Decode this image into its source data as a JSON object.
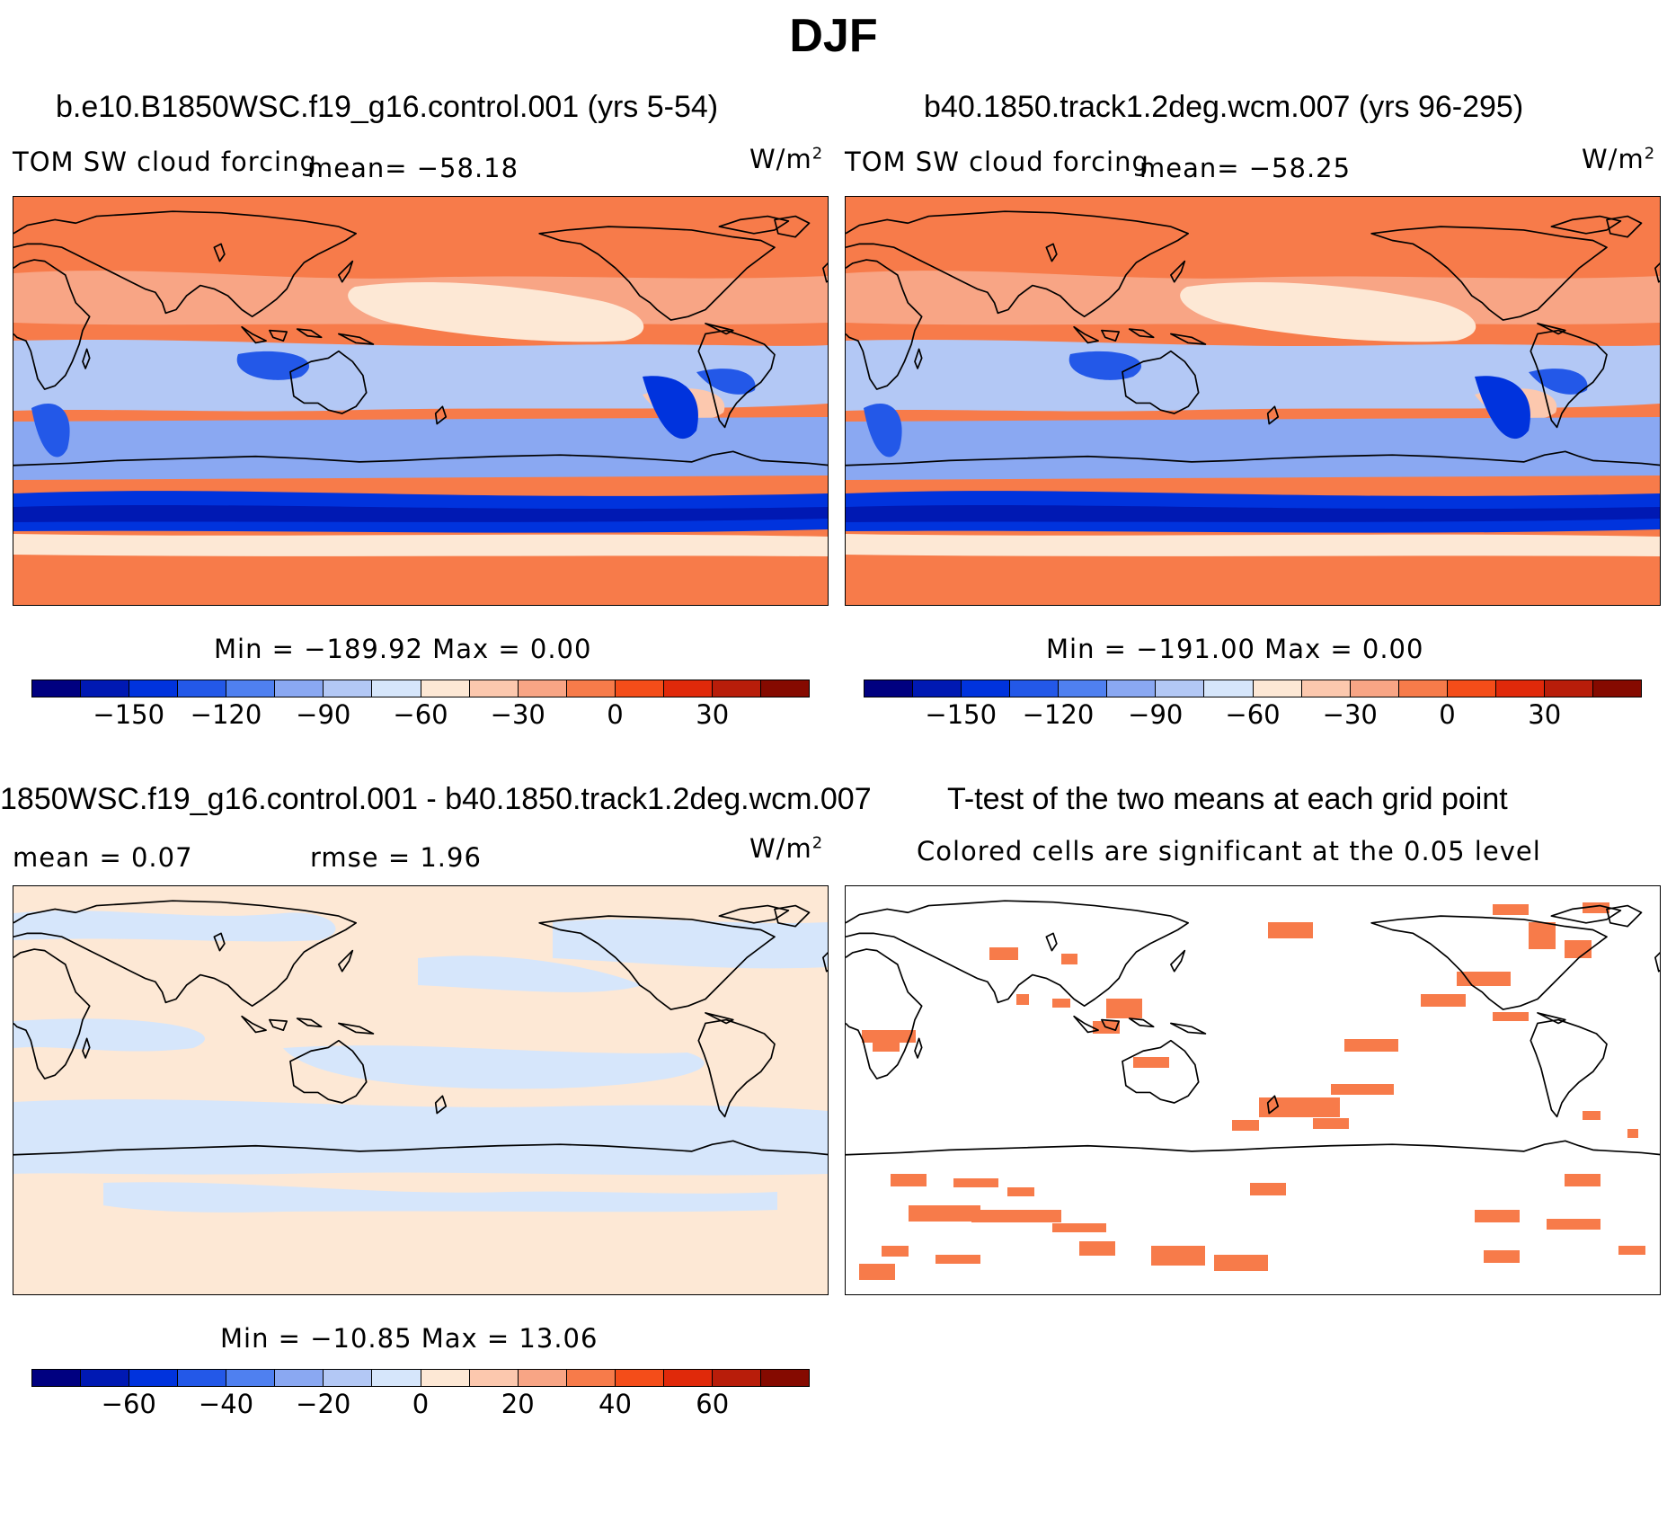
{
  "figure_title": "DJF",
  "colors": {
    "palette": [
      "#000080",
      "#0019b3",
      "#0033dd",
      "#2358e8",
      "#4f80f0",
      "#8aa8f2",
      "#b3c8f5",
      "#d6e6fb",
      "#fde8d5",
      "#fcc8ae",
      "#f8a585",
      "#f77b4a",
      "#f44d19",
      "#e0290a",
      "#b81d0a",
      "#850a00"
    ],
    "significance": "#f77b4a"
  },
  "panels": {
    "top_left": {
      "title": "b.e10.B1850WSC.f19_g16.control.001 (yrs 5-54)",
      "variable": "TOM SW cloud forcing",
      "mean_text": "mean= −58.18",
      "units": "W/m",
      "units_exp": "2",
      "minmax": "Min = −189.92 Max =    0.00"
    },
    "top_right": {
      "title": "b40.1850.track1.2deg.wcm.007 (yrs 96-295)",
      "variable": "TOM SW cloud forcing",
      "mean_text": "mean= −58.25",
      "units": "W/m",
      "units_exp": "2",
      "minmax": "Min = −191.00 Max =    0.00"
    },
    "bottom_left": {
      "title": "1850WSC.f19_g16.control.001 - b40.1850.track1.2deg.wcm.007",
      "mean_text": "mean =    0.07",
      "rmse_text": "rmse =    1.96",
      "units": "W/m",
      "units_exp": "2",
      "minmax": "Min = −10.85 Max =  13.06"
    },
    "bottom_right": {
      "title": "T-test of the two means at each grid point",
      "subtitle": "Colored cells are significant at the 0.05 level"
    }
  },
  "chart_data": [
    {
      "type": "heatmap",
      "title": "b.e10.B1850WSC.f19_g16.control.001 (yrs 5-54)",
      "variable": "TOM SW cloud forcing",
      "units": "W/m2",
      "mean": -58.18,
      "min": -189.92,
      "max": 0.0,
      "colorbar_levels": [
        -165,
        -150,
        -135,
        -120,
        -105,
        -90,
        -75,
        -60,
        -45,
        -30,
        -15,
        0,
        15,
        30,
        45
      ],
      "colorbar_ticks": [
        "−150",
        "−120",
        "−90",
        "−60",
        "−30",
        "0",
        "30"
      ],
      "projection": "cylindrical equidistant, Pacific-centered"
    },
    {
      "type": "heatmap",
      "title": "b40.1850.track1.2deg.wcm.007 (yrs 96-295)",
      "variable": "TOM SW cloud forcing",
      "units": "W/m2",
      "mean": -58.25,
      "min": -191.0,
      "max": 0.0,
      "colorbar_levels": [
        -165,
        -150,
        -135,
        -120,
        -105,
        -90,
        -75,
        -60,
        -45,
        -30,
        -15,
        0,
        15,
        30,
        45
      ],
      "colorbar_ticks": [
        "−150",
        "−120",
        "−90",
        "−60",
        "−30",
        "0",
        "30"
      ]
    },
    {
      "type": "heatmap",
      "title": "1850WSC.f19_g16.control.001 - b40.1850.track1.2deg.wcm.007",
      "units": "W/m2",
      "mean": 0.07,
      "rmse": 1.96,
      "min": -10.85,
      "max": 13.06,
      "colorbar_levels": [
        -70,
        -60,
        -50,
        -40,
        -30,
        -20,
        -10,
        0,
        10,
        20,
        30,
        40,
        50,
        60,
        70
      ],
      "colorbar_ticks": [
        "−60",
        "−40",
        "−20",
        "0",
        "20",
        "40",
        "60"
      ]
    },
    {
      "type": "heatmap",
      "title": "T-test of the two means at each grid point",
      "subtitle": "Colored cells are significant at the 0.05 level"
    }
  ]
}
